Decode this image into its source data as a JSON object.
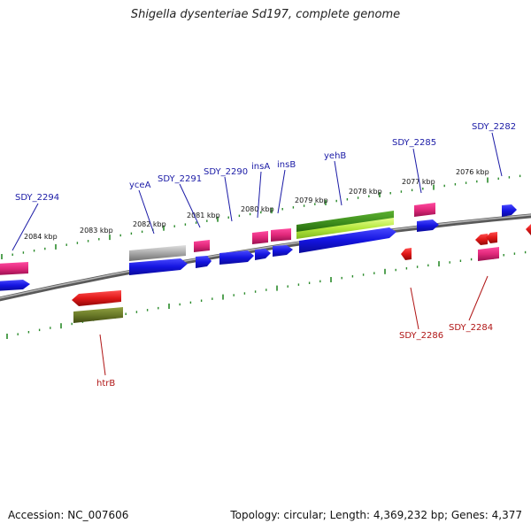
{
  "title": "Shigella dysenteriae Sd197, complete genome",
  "footer": {
    "accession": "Accession: NC_007606",
    "topology": "Topology: circular; Length: 4,369,232 bp; Genes: 4,377"
  },
  "kbp_labels": [
    "2084 kbp",
    "2083 kbp",
    "2082 kbp",
    "2081 kbp",
    "2080 kbp",
    "2079 kbp",
    "2078 kbp",
    "2077 kbp",
    "2076 kbp"
  ],
  "gene_labels_top": [
    "SDY_2294",
    "yceA",
    "SDY_2291",
    "SDY_2290",
    "insA",
    "insB",
    "yehB",
    "SDY_2285",
    "SDY_2282"
  ],
  "gene_labels_bottom": [
    "htrB",
    "SDY_2286",
    "SDY_2284"
  ],
  "colors": {
    "forward_label": "#1a1aa6",
    "reverse_label": "#b01515",
    "backbone": "#7a7a7a",
    "tick": "#2a8a2a",
    "cds_blue": "#1a1ae0",
    "feature_pink": "#e0287a",
    "feature_red": "#e01818",
    "feature_green": "#3c8c1c",
    "feature_lime": "#b4e83c",
    "feature_olive": "#6a7a28",
    "feature_gray": "#a8a8a8"
  }
}
